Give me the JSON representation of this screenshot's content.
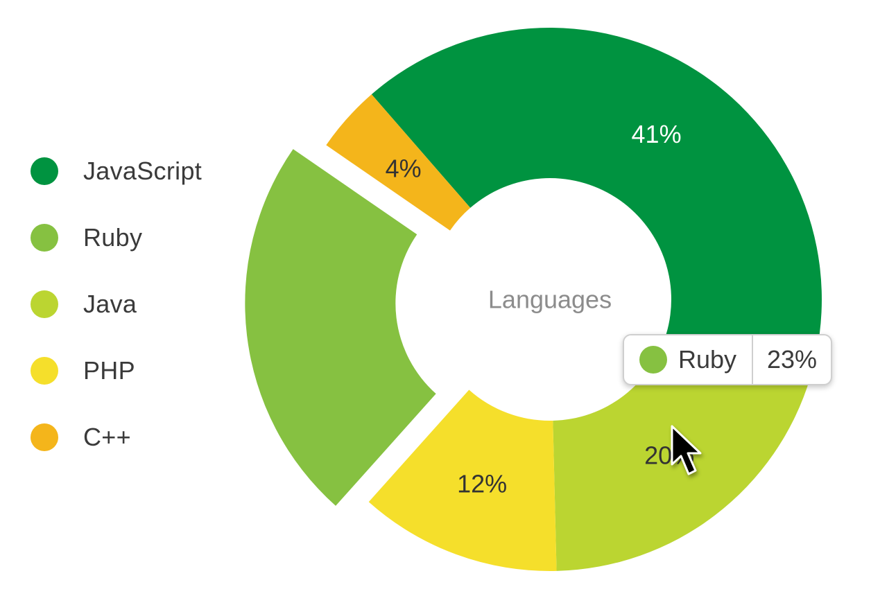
{
  "chart_data": {
    "type": "pie",
    "variant": "donut",
    "center_label": "Languages",
    "slices": [
      {
        "label": "JavaScript",
        "value": 41,
        "display": "41%",
        "color": "#009340",
        "label_color": "#ffffff",
        "exploded": false
      },
      {
        "label": "Java",
        "value": 20,
        "display": "20%",
        "color": "#bbd531",
        "label_color": "#333333",
        "exploded": false
      },
      {
        "label": "PHP",
        "value": 12,
        "display": "12%",
        "color": "#f5df2b",
        "label_color": "#333333",
        "exploded": false
      },
      {
        "label": "Ruby",
        "value": 23,
        "display": "23%",
        "color": "#86c141",
        "label_color": "#333333",
        "exploded": true,
        "show_label": false
      },
      {
        "label": "C++",
        "value": 4,
        "display": "4%",
        "color": "#f4b51b",
        "label_color": "#333333",
        "exploded": false
      }
    ],
    "legend": {
      "position": "left",
      "entries": [
        {
          "label": "JavaScript",
          "color": "#009340"
        },
        {
          "label": "Ruby",
          "color": "#86c141"
        },
        {
          "label": "Java",
          "color": "#bbd531"
        },
        {
          "label": "PHP",
          "color": "#f5df2b"
        },
        {
          "label": "C++",
          "color": "#f4b51b"
        }
      ]
    },
    "tooltip": {
      "label": "Ruby",
      "value": "23%",
      "color": "#86c141"
    }
  },
  "cursor": {
    "icon": "arrow-pointer-icon"
  }
}
